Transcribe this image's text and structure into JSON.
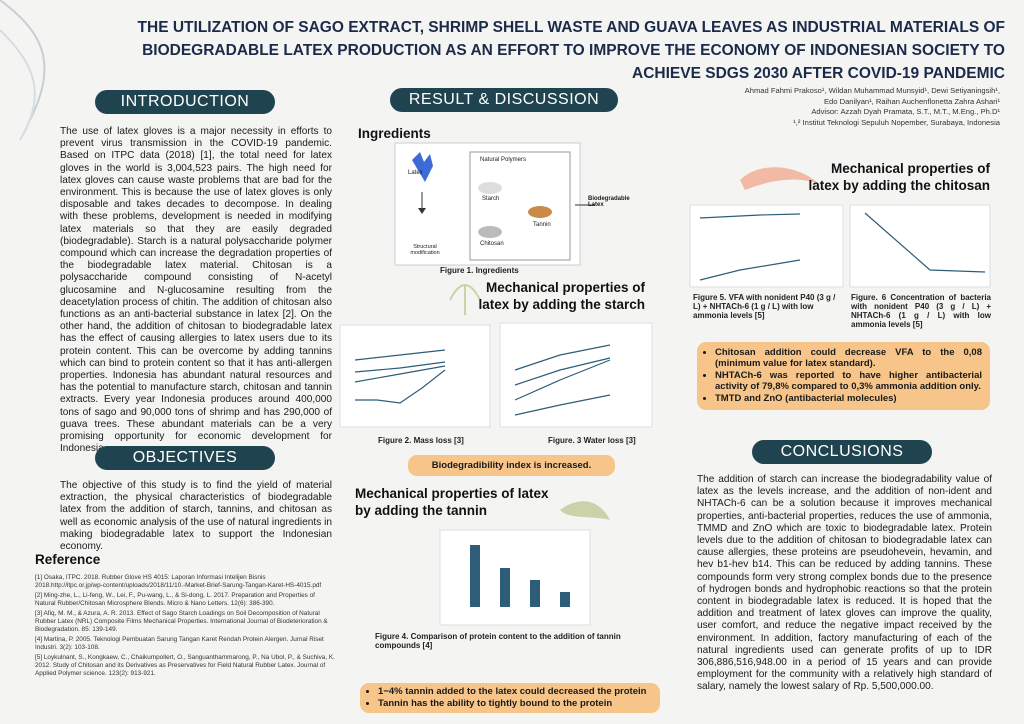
{
  "header": {
    "title": "THE UTILIZATION OF SAGO EXTRACT, SHRIMP SHELL WASTE AND GUAVA LEAVES AS INDUSTRIAL MATERIALS OF BIODEGRADABLE LATEX PRODUCTION AS AN EFFORT TO IMPROVE THE ECONOMY OF INDONESIAN SOCIETY TO ACHIEVE SDGS 2030 AFTER COVID-19 PANDEMIC",
    "authors": [
      "Ahmad Fahmi Prakoso¹, Wildan Muhammad Munsyid¹, Dewi Setiyaningsih¹,",
      "Edo Danilyan¹, Raihan Auchenflonetta Zahra Ashari¹",
      "Advisor: Azzah Dyah Pramata, S.T., M.T., M.Eng., Ph.D¹",
      "¹,² Institut Teknologi Sepuluh Nopember, Surabaya, Indonesia"
    ]
  },
  "introduction": {
    "heading": "INTRODUCTION",
    "text": "The use of latex gloves is a major necessity in efforts to prevent virus transmission in the COVID-19 pandemic. Based on ITPC data (2018) [1], the total need for latex gloves in the world is 3,004,523 pairs. The high need for latex gloves can cause waste problems that are bad for the environment. This is because the use of latex gloves is only disposable and takes decades to decompose. In dealing with these problems, development is needed in modifying latex materials so that they are easily degraded (biodegradable). Starch is a natural polysaccharide polymer compound which can increase the degradation properties of the biodegradable latex material. Chitosan is a polysaccharide compound consisting of N-acetyl glucosamine and N-glucosamine resulting from the deacetylation process of chitin. The addition of chitosan also functions as an anti-bacterial substance in latex [2]. On the other hand, the addition of chitosan to biodegradable latex has the effect of causing allergies to latex users due to its protein content. This can be overcome by adding tannins which can bind to protein content so that it has anti-allergen properties. Indonesia has abundant natural resources and has the potential to manufacture starch, chitosan and tannin extracts. Every year Indonesia produces around 400,000 tons of sago and 90,000 tons of shrimp and has 290,000 of guava trees. These abundant materials can be a very promising opportunity for economic development for Indonesia"
  },
  "objectives": {
    "heading": "OBJECTIVES",
    "text": "The objective of this study is to find the yield of material extraction, the physical characteristics of biodegradable latex from the addition of starch, tannins, and chitosan as well as economic analysis of the use of natural ingredients in making biodegradable latex to support the Indonesian economy."
  },
  "references": {
    "heading": "Reference",
    "items": [
      "[1] Osaka, ITPC. 2018. Rubber Glove HS 4015: Laporan Informasi Intelijen Bisnis 2018.http://itpc.or.jp/wp-content/uploads/2018/11/10.-Market-Brief-Sarung-Tangan-Karet-HS-4015.pdf",
      "[2] Ming-zhe, L., Li-feng, W., Lei, F., Pu-wang, L., & Si-dong, L. 2017. Preparation and Properties of Natural Rubber/Chitosan Microsphere Blends. Micro & Nano Letters. 12(6): 386-390.",
      "[3] Afiq, M. M., & Azura, A. R. 2013. Effect of Sago Starch Loadings on Soil Decomposition of Natural Rubber Latex (NRL) Composite Films Mechanical Properties. International Journal of Biodeterioration & Biodegradation. 85: 139-149.",
      "[4] Martina, P. 2005. Teknologi Pembuatan Sarung Tangan Karet Rendah Protein Alergen. Jurnal Riset Industri. 3(2): 103-108.",
      "[5] Loykulnant, S., Kongkaew, C., Chaikumpollert, O., Sanguanthammarong, P., Na Ubol, P., & Suchiva, K. 2012. Study of Chitosan and its Derivatives as Preservatives for Field Natural Rubber Latex. Journal of Applied Polymer science. 123(2): 913-921."
    ]
  },
  "results": {
    "heading": "RESULT & DISCUSSION",
    "ingredients": {
      "heading": "Ingredients",
      "labels": [
        "Latex",
        "Natural Polymers",
        "Starch",
        "Chitosan",
        "Tannin",
        "Structural modification",
        "Biodegradable Latex"
      ],
      "caption": "Figure 1. Ingredients"
    },
    "starch": {
      "heading": "Mechanical properties of latex by adding the starch",
      "fig2": "Figure 2. Mass loss [3]",
      "fig3": "Figure. 3 Water loss [3]",
      "callout": "Biodegradibility index is increased."
    },
    "tannin": {
      "heading": "Mechanical properties of latex by adding the tannin",
      "fig4": "Figure 4. Comparison of protein content to the addition of tannin compounds [4]",
      "bullets": [
        "1−4% tannin added to the latex  could decreased the protein",
        "Tannin has the ability to tightly bound to the protein"
      ]
    },
    "chitosan": {
      "heading": "Mechanical properties of latex by adding the chitosan",
      "fig5": "Figure 5. VFA with nonident P40 (3 g / L) + NHTACh-6 (1 g / L) with low ammonia levels [5]",
      "fig6": "Figure. 6 Concentration of bacteria with nonident P40 (3 g / L) + NHTACh-6 (1 g / L) with low ammonia levels [5]",
      "bullets": [
        "Chitosan addition could decrease VFA to the 0,08 (minimum value for latex standard).",
        "NHTACh-6 was reported to have higher antibacterial activity of 79,8% compared to 0,3% ammonia addition only.",
        "TMTD and ZnO (antibacterial molecules)"
      ]
    }
  },
  "conclusions": {
    "heading": "CONCLUSIONS",
    "text": "The addition of starch can increase the biodegradability value of latex as the levels increase, and the addition of non-ident and NHTACh-6 can be a solution because it improves mechanical properties, anti-bacterial properties, reduces the use of ammonia, TMMD and ZnO which are toxic to biodegradable latex. Protein levels due to the addition of chitosan to biodegradable latex can cause allergies, these proteins are pseudohevein, hevamin, and hev b1-hev b14. This can be reduced by adding tannins. These compounds form very strong complex bonds due to the presence of hydrogen bonds and hydrophobic reactions so that the protein content in biodegradable latex is reduced. It is hoped that the addition and treatment of latex gloves can improve the quality, user comfort, and reduce the negative impact received by the environment. In addition, factory manufacturing of each of the natural ingredients used can generate profits of up to IDR 306,886,516,948.00 in a period of 15 years and can provide employment for the community with a relatively high standard of salary, namely the lowest salary of Rp. 5,500,000.00."
  }
}
